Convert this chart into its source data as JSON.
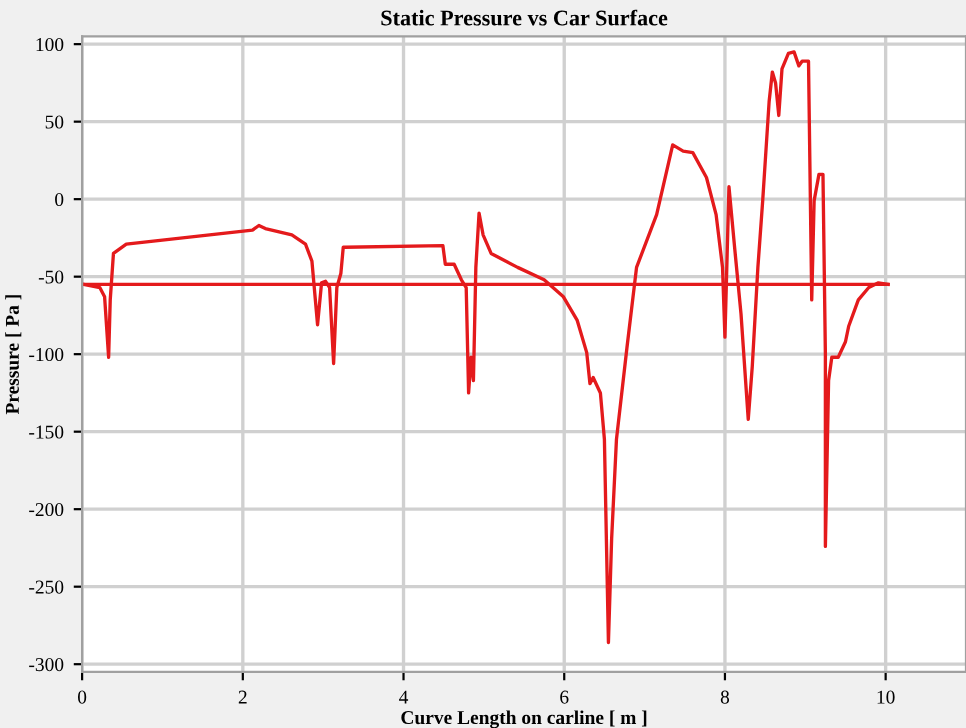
{
  "chart_data": {
    "type": "line",
    "title": "Static Pressure vs Car Surface",
    "xlabel": "Curve Length on carline [ m ]",
    "ylabel": "Pressure [ Pa ]",
    "xlim": [
      0,
      11
    ],
    "xticks": [
      0,
      2,
      4,
      6,
      8,
      10
    ],
    "ylim": [
      -305,
      105
    ],
    "yticks": [
      -300,
      -250,
      -200,
      -150,
      -100,
      -50,
      0,
      50,
      100
    ],
    "grid": true,
    "line_style": "solid",
    "series": [
      {
        "color": "#e41a1c",
        "x": [
          0.02,
          0.22,
          0.28,
          0.33,
          0.35,
          0.39,
          0.55,
          2.12,
          2.2,
          2.28,
          2.61,
          2.78,
          2.86,
          2.93,
          2.98,
          3.03,
          3.08,
          3.13,
          3.17,
          3.22,
          3.25,
          3.27,
          4.49,
          4.52,
          4.63,
          4.72,
          4.78,
          4.81,
          4.84,
          4.87,
          4.9,
          4.94,
          4.99,
          5.09,
          5.42,
          5.75,
          5.99,
          6.16,
          6.28,
          6.32,
          6.36,
          6.45,
          6.5,
          6.55,
          6.59,
          6.65,
          6.78,
          6.9,
          7.15,
          7.35,
          7.48,
          7.6,
          7.77,
          7.89,
          7.97,
          8.0,
          8.05,
          8.12,
          8.2,
          8.29,
          8.34,
          8.41,
          8.47,
          8.55,
          8.59,
          8.63,
          8.67,
          8.71,
          8.79,
          8.86,
          8.92,
          8.96,
          9.04,
          9.08,
          9.11,
          9.17,
          9.22,
          9.25,
          9.25,
          9.29,
          9.33,
          9.41,
          9.5,
          9.54,
          9.66,
          9.79,
          9.91,
          10.03
        ],
        "values": [
          -55,
          -57,
          -63,
          -102,
          -65,
          -35,
          -29,
          -20,
          -17,
          -19,
          -23,
          -29,
          -40,
          -81,
          -54,
          -53,
          -57,
          -106,
          -57,
          -48,
          -31,
          -31,
          -30,
          -42,
          -42,
          -52,
          -57,
          -125,
          -102,
          -117,
          -44,
          -9,
          -23,
          -35,
          -44,
          -52,
          -63,
          -78,
          -99,
          -119,
          -115,
          -125,
          -155,
          -286,
          -219,
          -155,
          -96,
          -44,
          -10,
          35,
          31,
          30,
          14,
          -10,
          -44,
          -89,
          8,
          -31,
          -74,
          -142,
          -108,
          -44,
          -1,
          63,
          82,
          75,
          54,
          84,
          94,
          95,
          86,
          89,
          89,
          -65,
          -1,
          16,
          16,
          -100,
          -224,
          -117,
          -102,
          -102,
          -92,
          -82,
          -65,
          -57,
          -54,
          -55
        ]
      },
      {
        "color": "#e41a1c",
        "x": [
          0.02,
          10.03
        ],
        "values": [
          -55,
          -55
        ]
      }
    ]
  }
}
